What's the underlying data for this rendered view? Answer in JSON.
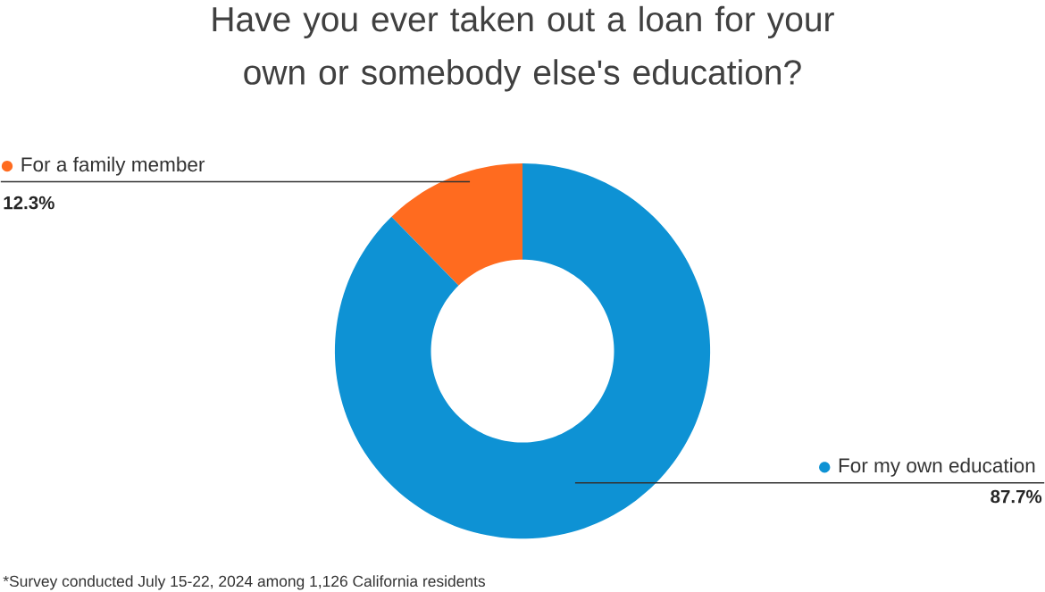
{
  "chart_data": {
    "type": "donut",
    "title": "Have you ever taken out a loan for your own or somebody else's education?",
    "categories": [
      "For a family member",
      "For my own education"
    ],
    "values": [
      12.3,
      87.7
    ],
    "colors": [
      "#ff6b1f",
      "#0e92d4"
    ],
    "value_labels": [
      "12.3%",
      "87.7%"
    ],
    "legend": "top left",
    "annotations": [
      "*Survey conducted July 15-22, 2024 among 1,126 California residents"
    ]
  }
}
